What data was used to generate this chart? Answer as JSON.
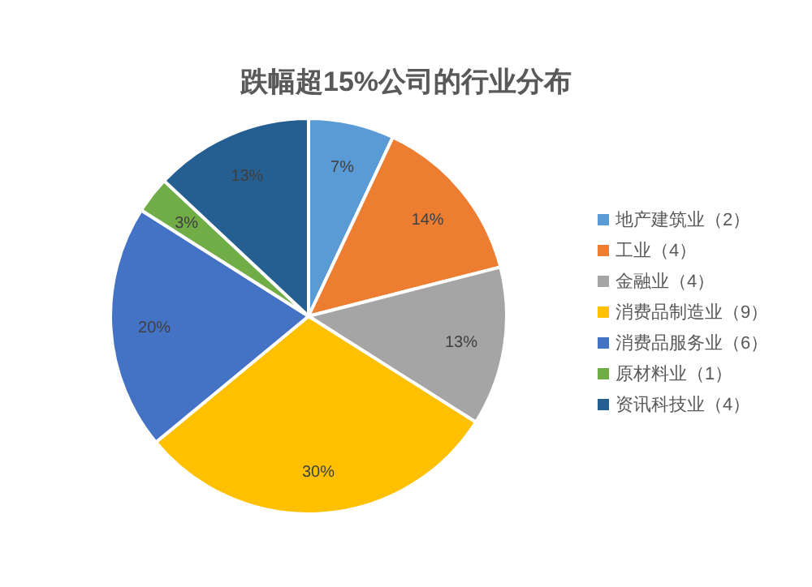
{
  "chart_data": {
    "type": "pie",
    "title": "跌幅超15%公司的行业分布",
    "categories": [
      "地产建筑业（2）",
      "工业（4）",
      "金融业（4）",
      "消费品制造业（9）",
      "消费品服务业（6）",
      "原材料业（1）",
      "资讯科技业（4）"
    ],
    "values": [
      7,
      14,
      13,
      30,
      20,
      3,
      13
    ],
    "colors": [
      "#5b9bd5",
      "#ed7d31",
      "#a5a5a5",
      "#ffc000",
      "#4472c4",
      "#70ad47",
      "#255e91"
    ],
    "value_labels": [
      "7%",
      "14%",
      "13%",
      "30%",
      "20%",
      "3%",
      "13%"
    ],
    "legend": "right"
  }
}
